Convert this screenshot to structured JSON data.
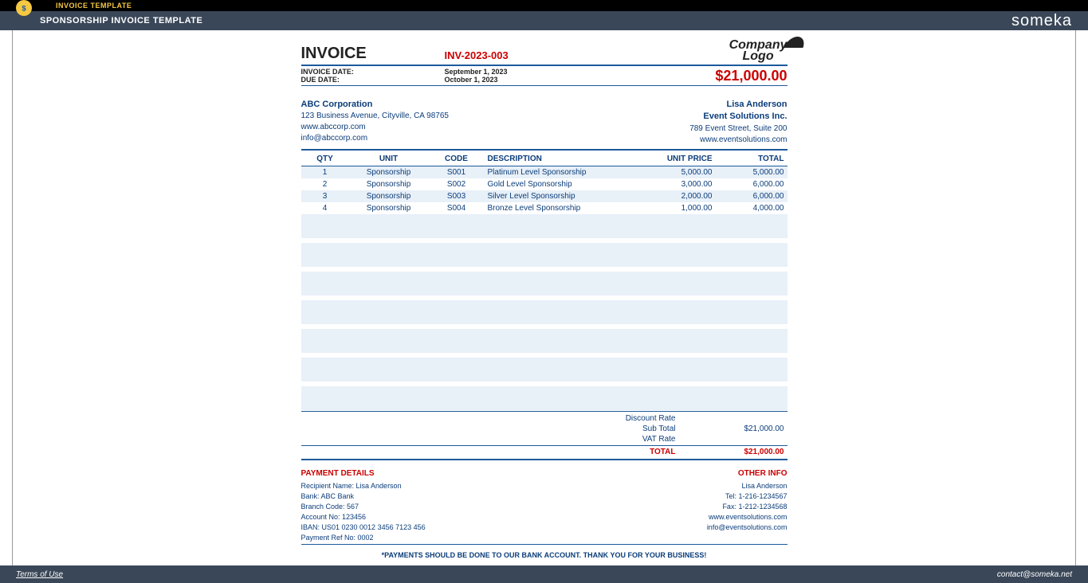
{
  "top": {
    "tag": "INVOICE TEMPLATE",
    "title": "SPONSORSHIP INVOICE TEMPLATE",
    "brand": "someka"
  },
  "invoice": {
    "heading": "INVOICE",
    "number": "INV-2023-003",
    "logo_text1": "Company",
    "logo_text2": "Logo",
    "date_label": "INVOICE DATE:",
    "due_label": "DUE DATE:",
    "date": "September 1, 2023",
    "due": "October 1, 2023",
    "grand_total_top": "$21,000.00"
  },
  "from": {
    "name": "ABC Corporation",
    "addr": "123 Business Avenue, Cityville, CA 98765",
    "web": "www.abccorp.com",
    "email": "info@abccorp.com"
  },
  "to": {
    "name": "Lisa Anderson",
    "company": "Event Solutions Inc.",
    "addr": "789 Event Street, Suite 200",
    "web": "www.eventsolutions.com"
  },
  "columns": {
    "qty": "QTY",
    "unit": "UNIT",
    "code": "CODE",
    "desc": "DESCRIPTION",
    "price": "UNIT PRICE",
    "total": "TOTAL"
  },
  "items": [
    {
      "qty": "1",
      "unit": "Sponsorship",
      "code": "S001",
      "desc": "Platinum Level Sponsorship",
      "price": "5,000.00",
      "total": "5,000.00"
    },
    {
      "qty": "2",
      "unit": "Sponsorship",
      "code": "S002",
      "desc": "Gold Level Sponsorship",
      "price": "3,000.00",
      "total": "6,000.00"
    },
    {
      "qty": "3",
      "unit": "Sponsorship",
      "code": "S003",
      "desc": "Silver Level Sponsorship",
      "price": "2,000.00",
      "total": "6,000.00"
    },
    {
      "qty": "4",
      "unit": "Sponsorship",
      "code": "S004",
      "desc": "Bronze Level Sponsorship",
      "price": "1,000.00",
      "total": "4,000.00"
    }
  ],
  "totals": {
    "discount_lbl": "Discount Rate",
    "discount_val": "",
    "sub_lbl": "Sub Total",
    "sub_val": "$21,000.00",
    "vat_lbl": "VAT Rate",
    "vat_val": "",
    "grand_lbl": "TOTAL",
    "grand_val": "$21,000.00"
  },
  "payment": {
    "hd": "PAYMENT DETAILS",
    "l1": "Recipient Name: Lisa Anderson",
    "l2": "Bank: ABC Bank",
    "l3": "Branch Code: 567",
    "l4": "Account No: 123456",
    "l5": "IBAN: US01 0230 0012 3456 7123 456",
    "l6": "Payment Ref No: 0002"
  },
  "other": {
    "hd": "OTHER INFO",
    "l1": "Lisa Anderson",
    "l2": "Tel: 1-216-1234567",
    "l3": "Fax: 1-212-1234568",
    "l4": "www.eventsolutions.com",
    "l5": "info@eventsolutions.com"
  },
  "footnote": "*PAYMENTS SHOULD BE DONE TO OUR BANK ACCOUNT. THANK YOU FOR YOUR BUSINESS!",
  "bottom": {
    "terms": "Terms of Use",
    "contact": "contact@someka.net"
  },
  "colors": {
    "blue": "#0b3d7a",
    "red": "#c00",
    "stripe": "#e8f0f8",
    "rule": "#1c5a9c",
    "bar_dark": "#000",
    "bar_navy": "#3a4758",
    "accent": "#f5c842"
  }
}
